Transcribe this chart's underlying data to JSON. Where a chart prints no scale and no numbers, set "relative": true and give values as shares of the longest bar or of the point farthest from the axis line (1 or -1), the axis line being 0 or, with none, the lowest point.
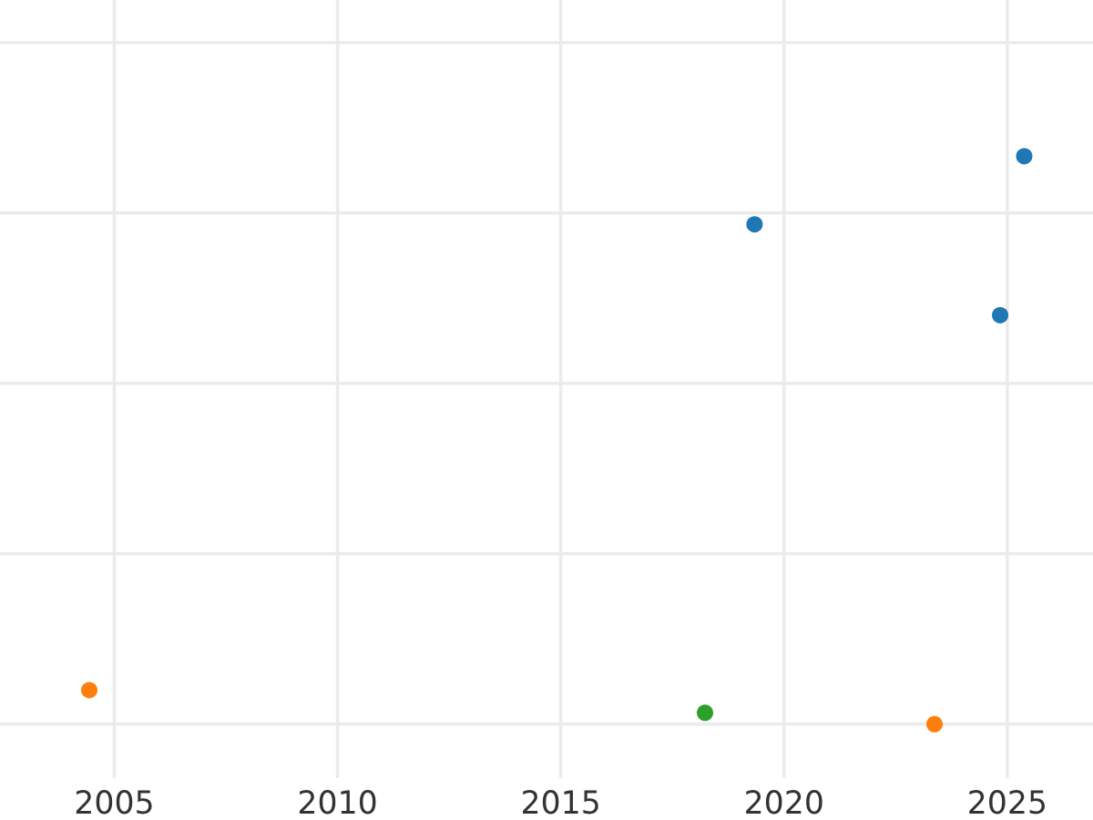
{
  "chart_data": {
    "type": "scatter",
    "relative": true,
    "marker": "circle",
    "grid": true,
    "tick_labels": "x",
    "xlim": [
      2002.44,
      2026.92
    ],
    "xticks": [
      2005,
      2010,
      2015,
      2020,
      2025
    ],
    "series": [
      {
        "color": "#1f77b4",
        "x": [
          2019.34,
          2024.84,
          2025.38
        ],
        "values": [
          0.88,
          0.72,
          1
        ]
      },
      {
        "color": "#ff7f0e",
        "x": [
          2004.44,
          2023.37
        ],
        "values": [
          0.06,
          0
        ]
      },
      {
        "color": "#2ca02c",
        "x": [
          2018.23
        ],
        "values": [
          0.02
        ]
      }
    ]
  }
}
